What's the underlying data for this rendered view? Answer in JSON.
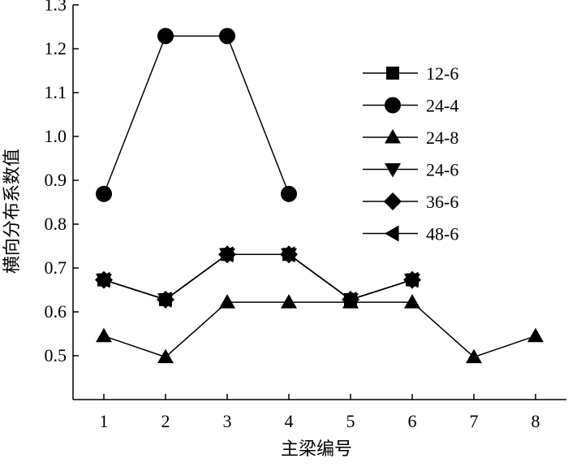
{
  "chart_data": {
    "type": "line",
    "title": "",
    "xlabel": "主梁编号",
    "ylabel": "横向分布系数值",
    "xlim": [
      0.5,
      8.5
    ],
    "ylim": [
      0.4,
      1.3
    ],
    "xticks": [
      1,
      2,
      3,
      4,
      5,
      6,
      7,
      8
    ],
    "xtick_labels": [
      "1",
      "2",
      "3",
      "4",
      "5",
      "6",
      "7",
      "8"
    ],
    "yticks": [
      0.5,
      0.6,
      0.7,
      0.8,
      0.9,
      1.0,
      1.1,
      1.2,
      1.3
    ],
    "ytick_labels": [
      "0.5",
      "0.6",
      "0.7",
      "0.8",
      "0.9",
      "1.0",
      "1.1",
      "1.2",
      "1.3"
    ],
    "grid": false,
    "legend_position": "right",
    "series": [
      {
        "name": "12-6",
        "marker": "square",
        "x": [
          1,
          2,
          3,
          4,
          5,
          6
        ],
        "values": [
          0.673,
          0.628,
          0.731,
          0.731,
          0.628,
          0.673
        ]
      },
      {
        "name": "24-4",
        "marker": "circle",
        "x": [
          1,
          2,
          3,
          4
        ],
        "values": [
          0.869,
          1.229,
          1.229,
          0.869
        ]
      },
      {
        "name": "24-8",
        "marker": "triangle-up",
        "x": [
          1,
          2,
          3,
          4,
          5,
          6,
          7,
          8
        ],
        "values": [
          0.545,
          0.497,
          0.622,
          0.622,
          0.622,
          0.622,
          0.497,
          0.545
        ]
      },
      {
        "name": "24-6",
        "marker": "triangle-down",
        "x": [
          1,
          2,
          3,
          4,
          5,
          6
        ],
        "values": [
          0.673,
          0.628,
          0.731,
          0.731,
          0.628,
          0.673
        ]
      },
      {
        "name": "36-6",
        "marker": "diamond",
        "x": [
          1,
          2,
          3,
          4,
          5,
          6
        ],
        "values": [
          0.673,
          0.628,
          0.731,
          0.731,
          0.628,
          0.673
        ]
      },
      {
        "name": "48-6",
        "marker": "triangle-left",
        "x": [
          1,
          2,
          3,
          4,
          5,
          6
        ],
        "values": [
          0.673,
          0.628,
          0.731,
          0.731,
          0.628,
          0.673
        ]
      }
    ]
  }
}
